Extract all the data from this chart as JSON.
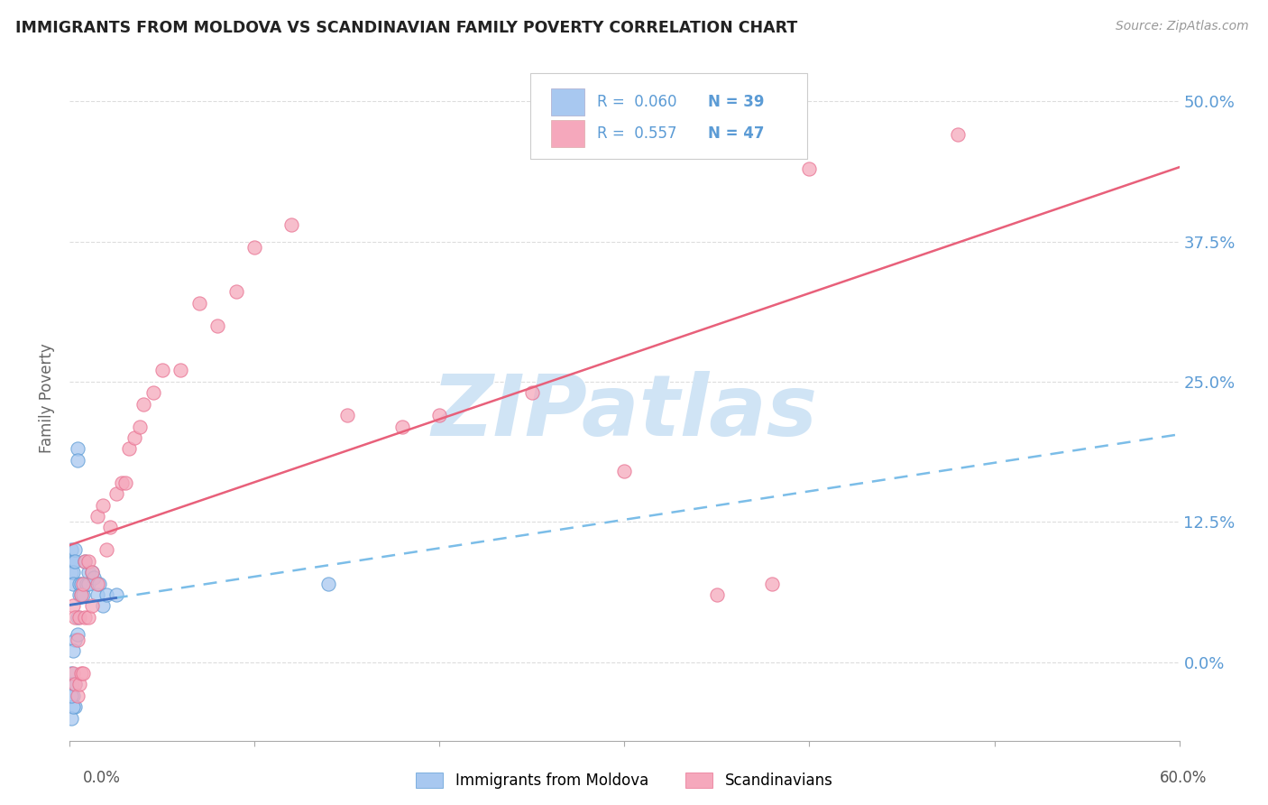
{
  "title": "IMMIGRANTS FROM MOLDOVA VS SCANDINAVIAN FAMILY POVERTY CORRELATION CHART",
  "source": "Source: ZipAtlas.com",
  "ylabel": "Family Poverty",
  "legend_label1": "Immigrants from Moldova",
  "legend_label2": "Scandinavians",
  "color_blue": "#A8C8F0",
  "color_pink": "#F5A8BC",
  "color_blue_dark": "#5B9BD5",
  "color_pink_dark": "#E87090",
  "color_blue_line_solid": "#4472C4",
  "color_blue_line_dash": "#7BBDE8",
  "color_pink_line": "#E8607A",
  "color_watermark": "#D0E4F5",
  "watermark_text": "ZIPatlas",
  "ytick_labels": [
    "0.0%",
    "12.5%",
    "25.0%",
    "37.5%",
    "50.0%"
  ],
  "ytick_values": [
    0.0,
    0.125,
    0.25,
    0.375,
    0.5
  ],
  "xlim": [
    0.0,
    0.6
  ],
  "ylim": [
    -0.07,
    0.54
  ],
  "moldova_x": [
    0.001,
    0.001,
    0.001,
    0.002,
    0.002,
    0.002,
    0.003,
    0.003,
    0.004,
    0.004,
    0.005,
    0.005,
    0.006,
    0.006,
    0.007,
    0.008,
    0.009,
    0.01,
    0.01,
    0.012,
    0.013,
    0.015,
    0.016,
    0.018,
    0.02,
    0.025,
    0.003,
    0.004,
    0.002,
    0.001,
    0.001,
    0.002,
    0.003,
    0.001,
    0.002,
    0.001,
    0.003,
    0.004,
    0.14
  ],
  "moldova_y": [
    0.09,
    0.1,
    0.08,
    0.09,
    0.08,
    0.07,
    0.1,
    0.09,
    0.19,
    0.18,
    0.07,
    0.06,
    0.07,
    0.06,
    0.06,
    0.09,
    0.07,
    0.08,
    0.07,
    0.08,
    0.075,
    0.06,
    0.07,
    0.05,
    0.06,
    0.06,
    0.02,
    0.025,
    0.01,
    -0.01,
    -0.02,
    -0.03,
    -0.04,
    -0.05,
    -0.04,
    -0.03,
    -0.02,
    0.04,
    0.07
  ],
  "scandinavian_x": [
    0.002,
    0.003,
    0.004,
    0.005,
    0.006,
    0.007,
    0.008,
    0.01,
    0.012,
    0.015,
    0.018,
    0.02,
    0.022,
    0.025,
    0.028,
    0.03,
    0.032,
    0.035,
    0.038,
    0.04,
    0.045,
    0.05,
    0.06,
    0.07,
    0.08,
    0.09,
    0.1,
    0.12,
    0.15,
    0.18,
    0.2,
    0.25,
    0.3,
    0.35,
    0.38,
    0.4,
    0.002,
    0.003,
    0.004,
    0.005,
    0.006,
    0.007,
    0.008,
    0.01,
    0.012,
    0.015,
    0.48
  ],
  "scandinavian_y": [
    0.05,
    0.04,
    0.02,
    0.04,
    0.06,
    0.07,
    0.09,
    0.09,
    0.08,
    0.13,
    0.14,
    0.1,
    0.12,
    0.15,
    0.16,
    0.16,
    0.19,
    0.2,
    0.21,
    0.23,
    0.24,
    0.26,
    0.26,
    0.32,
    0.3,
    0.33,
    0.37,
    0.39,
    0.22,
    0.21,
    0.22,
    0.24,
    0.17,
    0.06,
    0.07,
    0.44,
    -0.01,
    -0.02,
    -0.03,
    -0.02,
    -0.01,
    -0.01,
    0.04,
    0.04,
    0.05,
    0.07,
    0.47
  ],
  "background_color": "#FFFFFF",
  "grid_color": "#DDDDDD"
}
